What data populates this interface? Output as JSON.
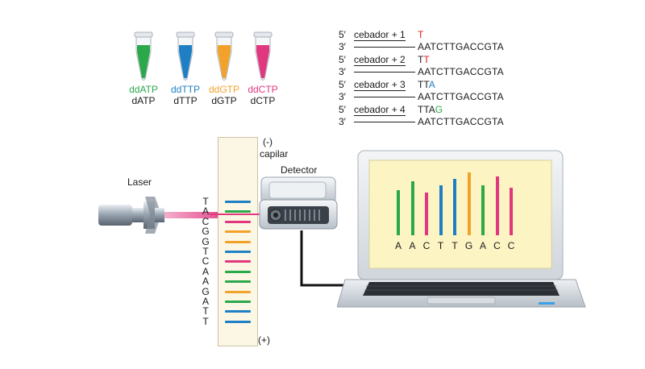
{
  "colors": {
    "green": "#2aa84a",
    "blue": "#1f7fc4",
    "orange": "#f2a22a",
    "magenta": "#e0377f",
    "red": "#e02020"
  },
  "tubes": [
    {
      "dd": "ddATP",
      "d": "dATP",
      "color": "#2aa84a"
    },
    {
      "dd": "ddTTP",
      "d": "dTTP",
      "color": "#1f7fc4"
    },
    {
      "dd": "ddGTP",
      "d": "dGTP",
      "color": "#f2a22a"
    },
    {
      "dd": "ddCTP",
      "d": "dCTP",
      "color": "#e0377f"
    }
  ],
  "primers": [
    {
      "five": "5′",
      "three": "3′",
      "label": "cebador + 1",
      "ext_plain": "",
      "ext_color_char": "T",
      "ext_color": "#e02020",
      "template": "AATCTTGACCGTA"
    },
    {
      "five": "5′",
      "three": "3′",
      "label": "cebador + 2",
      "ext_plain": "T",
      "ext_color_char": "T",
      "ext_color": "#e02020",
      "template": "AATCTTGACCGTA"
    },
    {
      "five": "5′",
      "three": "3′",
      "label": "cebador + 3",
      "ext_plain": "TT",
      "ext_color_char": "A",
      "ext_color": "#1f7fc4",
      "template": "AATCTTGACCGTA"
    },
    {
      "five": "5′",
      "three": "3′",
      "label": "cebador + 4",
      "ext_plain": "TTA",
      "ext_color_char": "G",
      "ext_color": "#2aa84a",
      "template": "AATCTTGACCGTA"
    }
  ],
  "gel": {
    "minus_label": "(-)",
    "capillary_label": "capilar",
    "plus_label": "(+)",
    "letters": [
      "T",
      "A",
      "C",
      "G",
      "G",
      "T",
      "C",
      "A",
      "A",
      "G",
      "A",
      "T",
      "T"
    ],
    "band_colors": [
      "#1f7fc4",
      "#2aa84a",
      "#e0377f",
      "#f2a22a",
      "#f2a22a",
      "#1f7fc4",
      "#e0377f",
      "#2aa84a",
      "#2aa84a",
      "#f2a22a",
      "#2aa84a",
      "#1f7fc4",
      "#1f7fc4"
    ]
  },
  "laser": {
    "label": "Laser"
  },
  "detector": {
    "label": "Detector"
  },
  "chromatogram": {
    "letters": [
      "A",
      "A",
      "C",
      "T",
      "T",
      "G",
      "A",
      "C",
      "C"
    ],
    "colors": [
      "#2aa84a",
      "#2aa84a",
      "#e0377f",
      "#1f7fc4",
      "#1f7fc4",
      "#f2a22a",
      "#2aa84a",
      "#e0377f",
      "#e0377f"
    ],
    "heights": [
      0.72,
      0.86,
      0.68,
      0.8,
      0.9,
      1.0,
      0.8,
      0.93,
      0.76
    ]
  }
}
